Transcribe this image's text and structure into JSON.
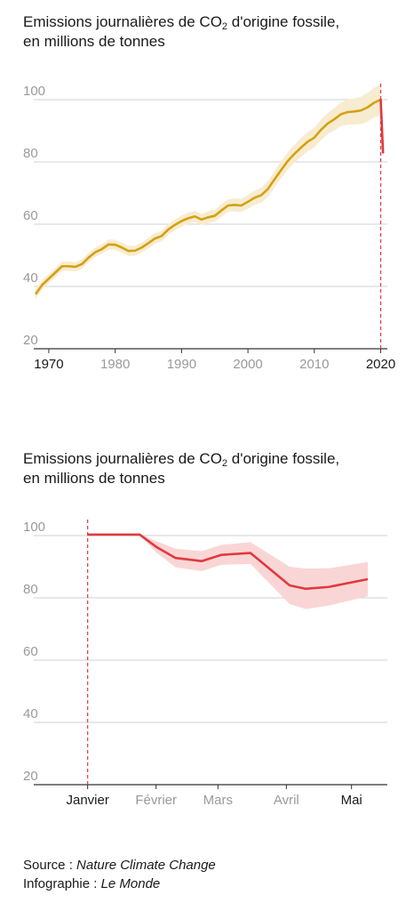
{
  "chart_data": [
    {
      "type": "line",
      "title_prefix": "Emissions journalières de CO",
      "title_sub": "2",
      "title_suffix": " d'origine fossile,",
      "title_line2": "en millions de tonnes",
      "y_ticks": [
        "20",
        "40",
        "60",
        "80",
        "100"
      ],
      "ylim": [
        20,
        100
      ],
      "xlim": [
        1968,
        2021
      ],
      "x_ticks": [
        {
          "label": "1970",
          "value": 1970,
          "highlight": true
        },
        {
          "label": "1980",
          "value": 1980,
          "highlight": false
        },
        {
          "label": "1990",
          "value": 1990,
          "highlight": false
        },
        {
          "label": "2000",
          "value": 2000,
          "highlight": false
        },
        {
          "label": "2010",
          "value": 2010,
          "highlight": false
        },
        {
          "label": "2020",
          "value": 2020,
          "highlight": true
        }
      ],
      "grid": true,
      "reference_line_x": 2020,
      "colors": {
        "line": "#d4a112",
        "band": "#f7ecd0",
        "drop": "#e0393e"
      },
      "series": [
        {
          "x": [
            1968,
            1969,
            1970,
            1971,
            1972,
            1973,
            1974,
            1975,
            1976,
            1977,
            1978,
            1979,
            1980,
            1981,
            1982,
            1983,
            1984,
            1985,
            1986,
            1987,
            1988,
            1989,
            1990,
            1991,
            1992,
            1993,
            1994,
            1995,
            1996,
            1997,
            1998,
            1999,
            2000,
            2001,
            2002,
            2003,
            2004,
            2005,
            2006,
            2007,
            2008,
            2009,
            2010,
            2011,
            2012,
            2013,
            2014,
            2015,
            2016,
            2017,
            2018,
            2019,
            2020
          ],
          "y": [
            37.5,
            40.5,
            42.5,
            44.5,
            46.5,
            46.5,
            46.3,
            47.2,
            49.3,
            51.0,
            52.0,
            53.5,
            53.4,
            52.5,
            51.4,
            51.5,
            52.5,
            53.9,
            55.4,
            56.2,
            58.3,
            59.8,
            61.0,
            61.9,
            62.5,
            61.5,
            62.2,
            62.7,
            64.4,
            66.0,
            66.2,
            66.0,
            67.2,
            68.5,
            69.3,
            71.3,
            74.4,
            77.4,
            80.3,
            82.6,
            84.6,
            86.5,
            87.8,
            90.3,
            92.3,
            93.7,
            95.3,
            96.0,
            96.2,
            96.5,
            97.5,
            99.0,
            100.0
          ],
          "band": [
            1.5,
            1.5,
            1.5,
            1.5,
            1.5,
            1.5,
            1.5,
            1.5,
            1.5,
            1.5,
            1.5,
            1.6,
            1.6,
            1.6,
            1.6,
            1.6,
            1.6,
            1.7,
            1.7,
            1.7,
            1.7,
            1.7,
            1.8,
            1.8,
            1.8,
            1.8,
            1.9,
            1.9,
            2.0,
            2.0,
            2.1,
            2.1,
            2.2,
            2.3,
            2.4,
            2.5,
            2.6,
            2.7,
            2.8,
            2.9,
            3.0,
            3.1,
            3.2,
            3.3,
            3.4,
            3.6,
            3.8,
            4.0,
            4.2,
            4.4,
            4.6,
            4.8,
            5.0
          ]
        },
        {
          "x": [
            2020,
            2020.35
          ],
          "y": [
            100,
            83
          ]
        }
      ]
    },
    {
      "type": "line",
      "title_prefix": "Emissions journalières de CO",
      "title_sub": "2",
      "title_suffix": " d'origine fossile,",
      "title_line2": "en millions de tonnes",
      "y_ticks": [
        "20",
        "40",
        "60",
        "80",
        "100"
      ],
      "ylim": [
        20,
        100
      ],
      "xlim": [
        0,
        5.4
      ],
      "x_ticks": [
        {
          "label": "Janvier",
          "value": 0.8,
          "highlight": true
        },
        {
          "label": "Février",
          "value": 1.85,
          "highlight": false
        },
        {
          "label": "Mars",
          "value": 2.8,
          "highlight": false
        },
        {
          "label": "Avril",
          "value": 3.85,
          "highlight": false
        },
        {
          "label": "Mai",
          "value": 4.85,
          "highlight": true
        }
      ],
      "grid": true,
      "reference_line_x": 0.8,
      "colors": {
        "line": "#e0393e",
        "band": "#f9d6d5"
      },
      "series": [
        {
          "x": [
            0.8,
            1.3,
            1.6,
            1.85,
            2.15,
            2.55,
            2.85,
            3.3,
            3.9,
            4.15,
            4.5,
            5.1
          ],
          "y": [
            100.3,
            100.3,
            100.3,
            96.4,
            92.8,
            91.8,
            93.8,
            94.4,
            84.0,
            82.9,
            83.5,
            86.0
          ],
          "band": [
            0.3,
            0.3,
            0.3,
            1.8,
            3.0,
            3.2,
            3.2,
            3.5,
            6.0,
            6.5,
            6.0,
            5.5
          ]
        }
      ]
    }
  ],
  "source": {
    "source_label": "Source : ",
    "source_name": "Nature Climate Change",
    "infographie_label": "Infographie : ",
    "infographie_name": "Le Monde"
  }
}
